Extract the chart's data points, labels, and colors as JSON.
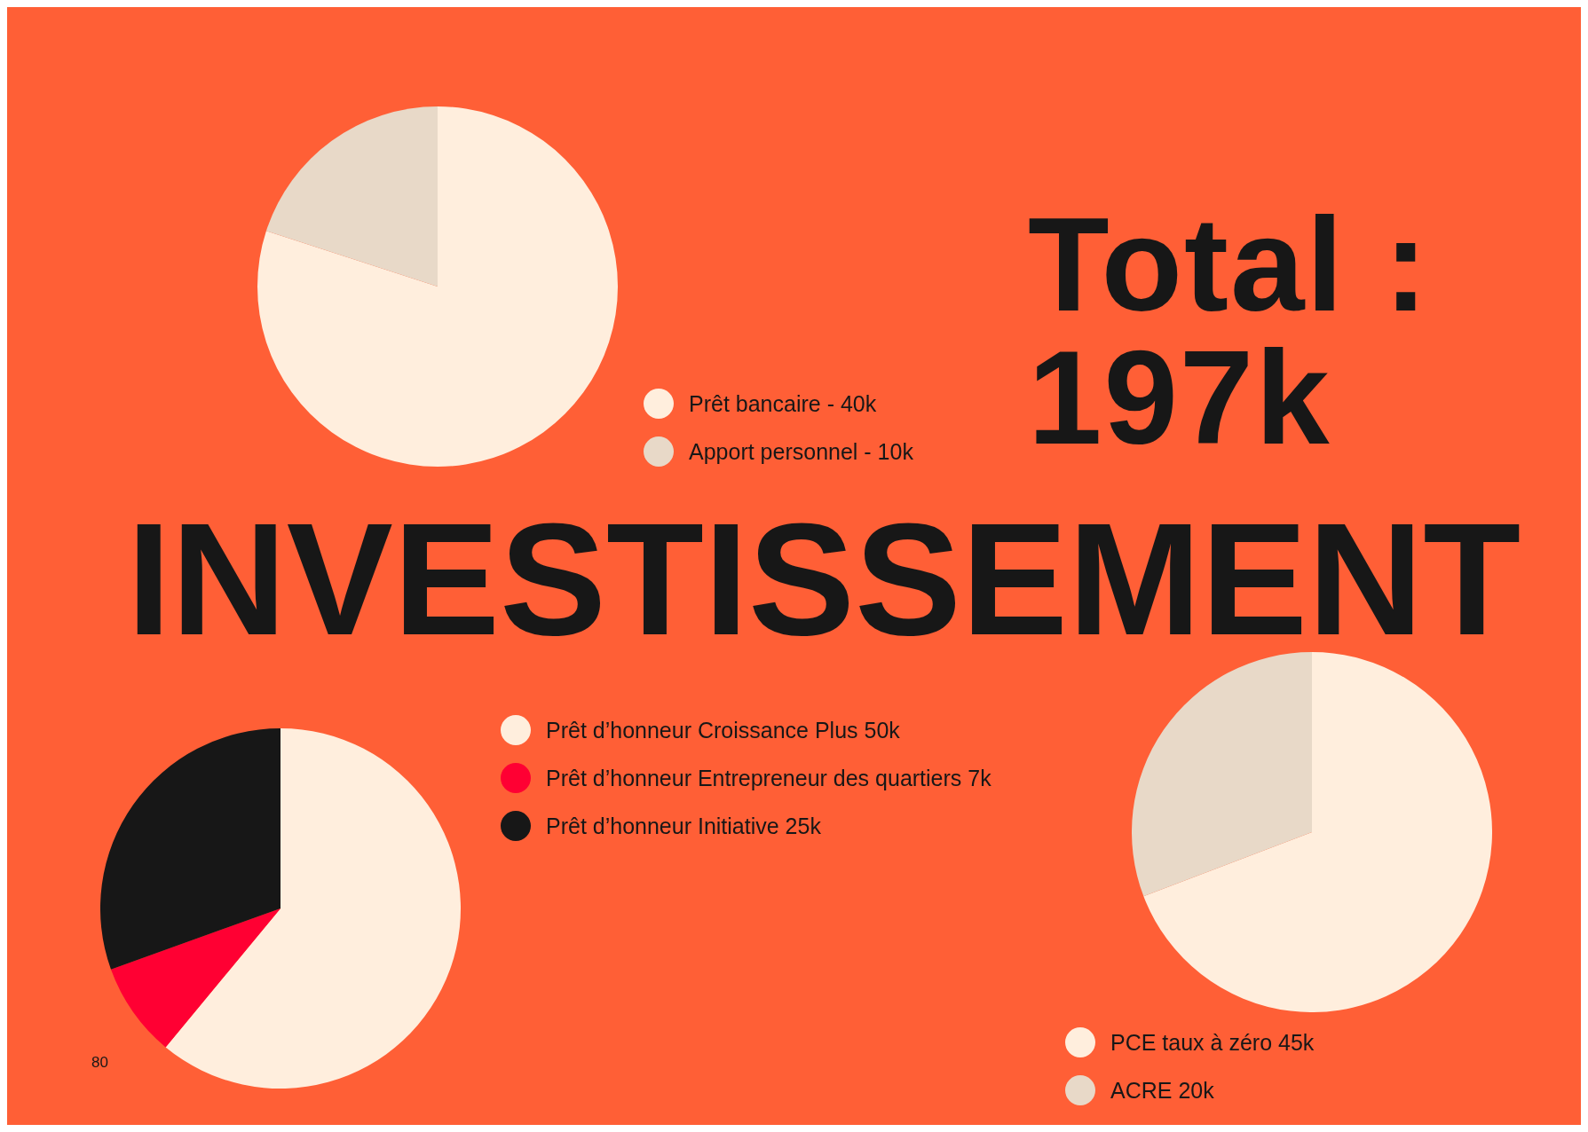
{
  "chart_data": [
    {
      "type": "pie",
      "categories": [
        "Prêt bancaire - 40k",
        "Apport personnel - 10k"
      ],
      "values": [
        80,
        20
      ],
      "colors": [
        "#ffeedd",
        "#e8d9c8"
      ],
      "legend": "right"
    },
    {
      "type": "pie",
      "categories": [
        "Prêt d’honneur Croissance Plus 50k",
        "Prêt d’honneur Entrepreneur des quartiers 7k",
        "Prêt d’honneur Initiative 25k"
      ],
      "values": [
        61.0,
        8.5,
        30.5
      ],
      "colors": [
        "#ffeedd",
        "#ff0033",
        "#171717"
      ],
      "legend": "top right"
    },
    {
      "type": "pie",
      "categories": [
        "PCE taux à zéro 45k",
        "ACRE 20k"
      ],
      "values": [
        69.2,
        30.8
      ],
      "colors": [
        "#ffeedd",
        "#e8d9c8"
      ],
      "legend": "bottom left"
    },
    {
      "type": "other",
      "title": "INVESTISSEMENT",
      "subtitle": "Total : 197k",
      "annotations": [
        "80"
      ]
    }
  ]
}
